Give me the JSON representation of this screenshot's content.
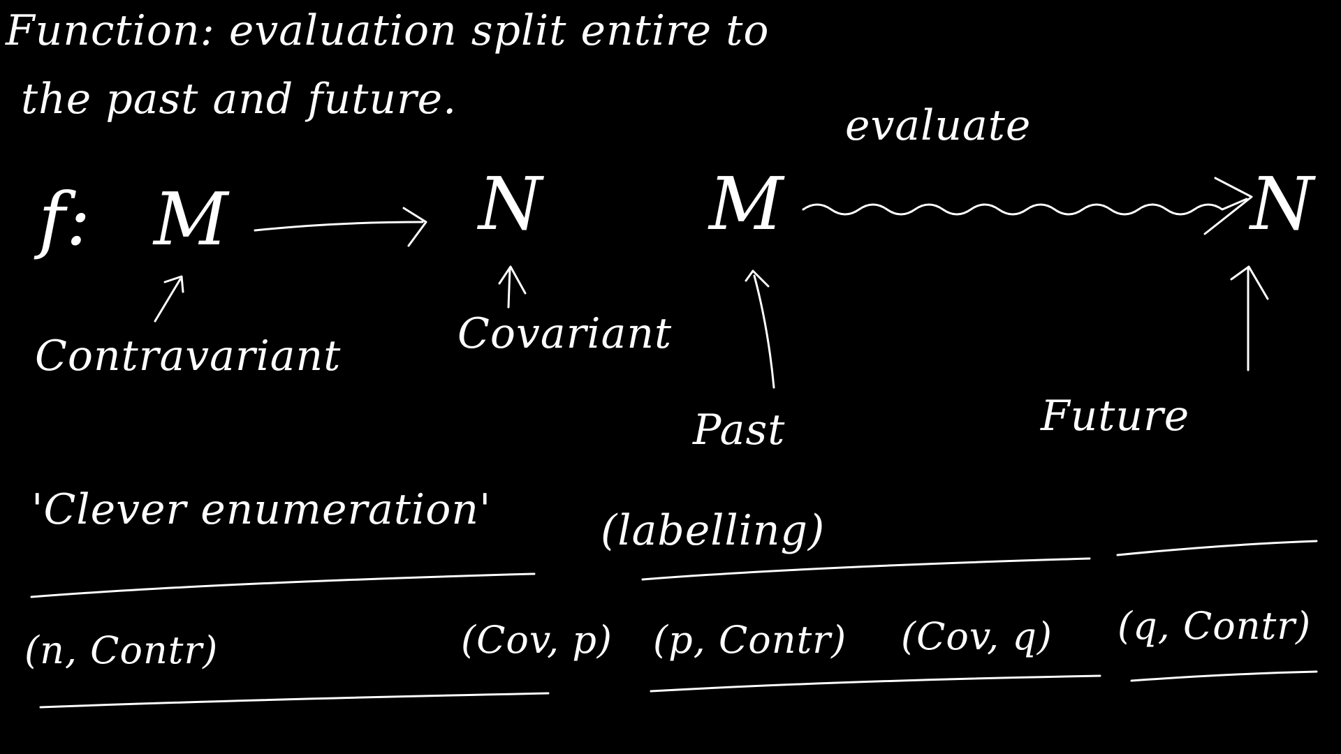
{
  "notes": {
    "line1": "Function: evaluation split entire to",
    "line2": "the past and future.",
    "evaluate": "evaluate",
    "f_label": "f:",
    "m1": "M",
    "n1": "N",
    "m2": "M",
    "n2": "N",
    "contravariant": "Contravariant",
    "covariant": "Covariant",
    "past": "Past",
    "future": "Future",
    "clever": "'Clever enumeration'",
    "labelling": "(labelling)",
    "pairs": [
      "(n, Contr)",
      "(Cov, p)",
      "(p, Contr)",
      "(Cov, q)",
      "(q, Contr)"
    ]
  },
  "colors": {
    "background": "#000000",
    "ink": "#ffffff"
  }
}
